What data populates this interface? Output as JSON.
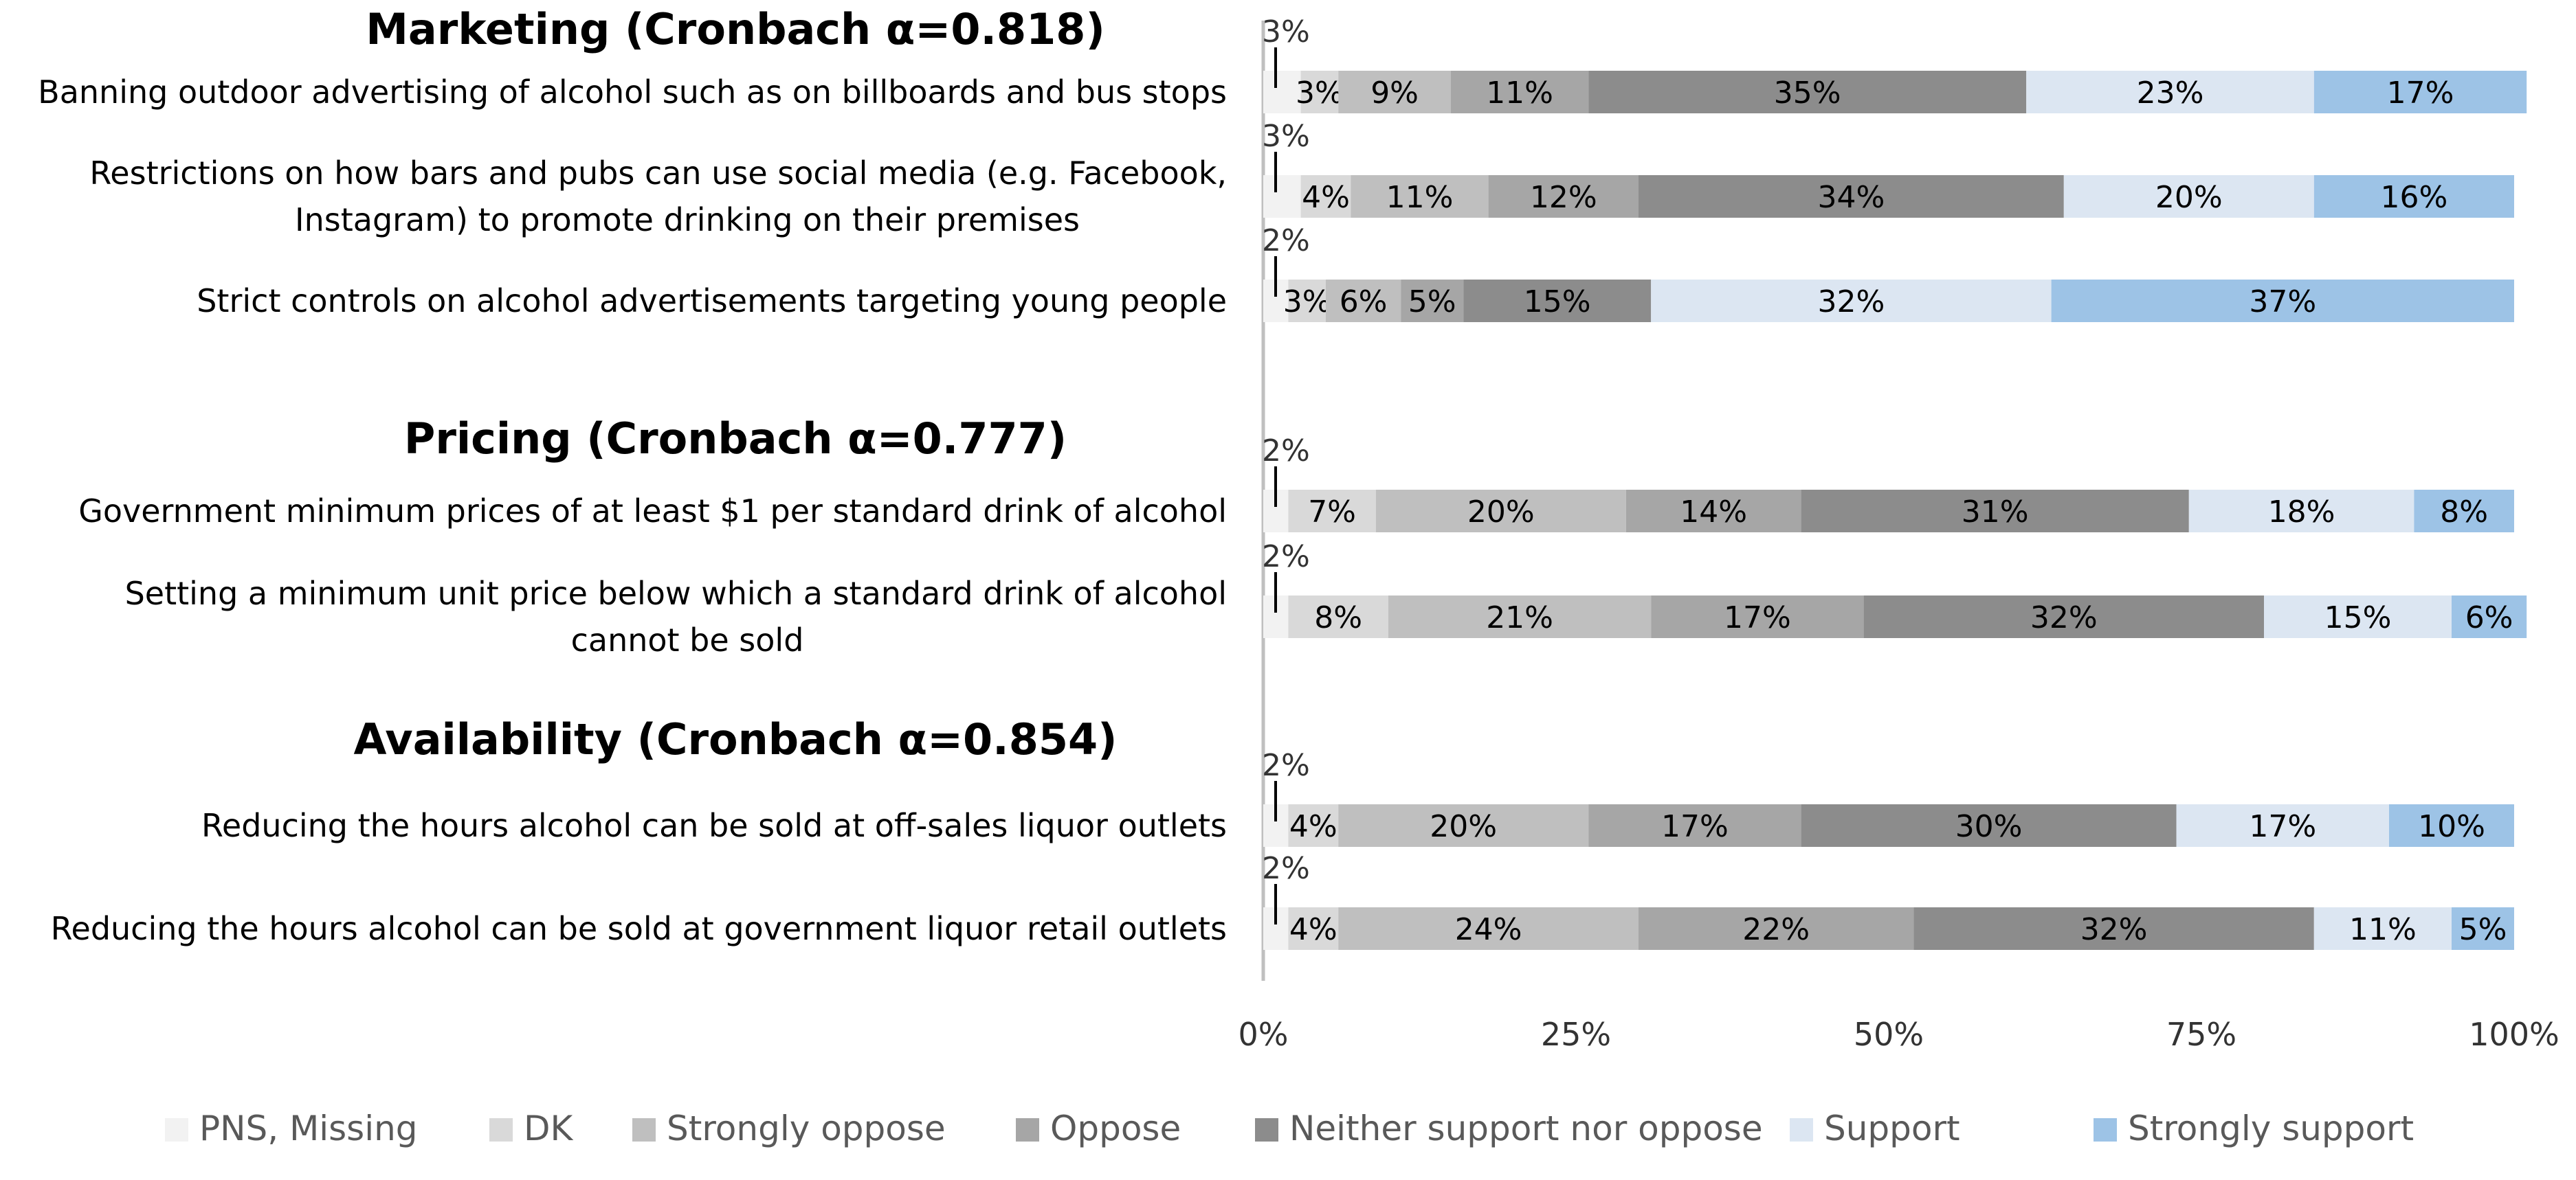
{
  "chart_data": {
    "type": "bar",
    "orientation": "horizontal",
    "stacked": true,
    "xlim": [
      0,
      100
    ],
    "xticks": [
      "0%",
      "25%",
      "50%",
      "75%",
      "100%"
    ],
    "series": [
      {
        "name": "PNS, Missing",
        "color": "#f2f2f2"
      },
      {
        "name": "DK",
        "color": "#d9d9d9"
      },
      {
        "name": "Strongly oppose",
        "color": "#bfbfbf"
      },
      {
        "name": "Oppose",
        "color": "#a6a6a6"
      },
      {
        "name": "Neither support nor oppose",
        "color": "#8c8c8c"
      },
      {
        "name": "Support",
        "color": "#dce6f2"
      },
      {
        "name": "Strongly support",
        "color": "#9dc3e6"
      }
    ],
    "groups": [
      {
        "title": "Marketing (Cronbach α=0.818)",
        "items": [
          {
            "label": [
              "Banning outdoor advertising of alcohol such as on billboards and bus stops"
            ],
            "values": [
              3,
              3,
              9,
              11,
              35,
              23,
              17
            ],
            "value_labels": [
              "3%",
              "3%",
              "9%",
              "11%",
              "35%",
              "23%",
              "17%"
            ]
          },
          {
            "label": [
              "Restrictions on how bars and pubs can use social media (e.g. Facebook,",
              "Instagram) to promote drinking on their premises"
            ],
            "values": [
              3,
              4,
              11,
              12,
              34,
              20,
              16
            ],
            "value_labels": [
              "3%",
              "4%",
              "11%",
              "12%",
              "34%",
              "20%",
              "16%"
            ]
          },
          {
            "label": [
              "Strict controls on alcohol advertisements targeting young people"
            ],
            "values": [
              2,
              3,
              6,
              5,
              15,
              32,
              37
            ],
            "value_labels": [
              "2%",
              "3%",
              "6%",
              "5%",
              "15%",
              "32%",
              "37%"
            ]
          }
        ]
      },
      {
        "title": "Pricing (Cronbach α=0.777)",
        "items": [
          {
            "label": [
              "Government minimum prices of at least $1 per standard drink of alcohol"
            ],
            "values": [
              2,
              7,
              20,
              14,
              31,
              18,
              8
            ],
            "value_labels": [
              "2%",
              "7%",
              "20%",
              "14%",
              "31%",
              "18%",
              "8%"
            ]
          },
          {
            "label": [
              "Setting a minimum unit price below which a standard drink of alcohol",
              "cannot be sold"
            ],
            "values": [
              2,
              8,
              21,
              17,
              32,
              15,
              6
            ],
            "value_labels": [
              "2%",
              "8%",
              "21%",
              "17%",
              "32%",
              "15%",
              "6%"
            ]
          }
        ]
      },
      {
        "title": "Availability (Cronbach α=0.854)",
        "items": [
          {
            "label": [
              "Reducing the hours alcohol can be sold at off-sales liquor outlets"
            ],
            "values": [
              2,
              4,
              20,
              17,
              30,
              17,
              10
            ],
            "value_labels": [
              "2%",
              "4%",
              "20%",
              "17%",
              "30%",
              "17%",
              "10%"
            ]
          },
          {
            "label": [
              "Reducing the hours alcohol can be sold at government liquor retail outlets"
            ],
            "values": [
              2,
              4,
              24,
              22,
              32,
              11,
              5
            ],
            "value_labels": [
              "2%",
              "4%",
              "24%",
              "22%",
              "32%",
              "11%",
              "5%"
            ]
          }
        ]
      }
    ],
    "legend": {
      "position": "bottom"
    }
  }
}
